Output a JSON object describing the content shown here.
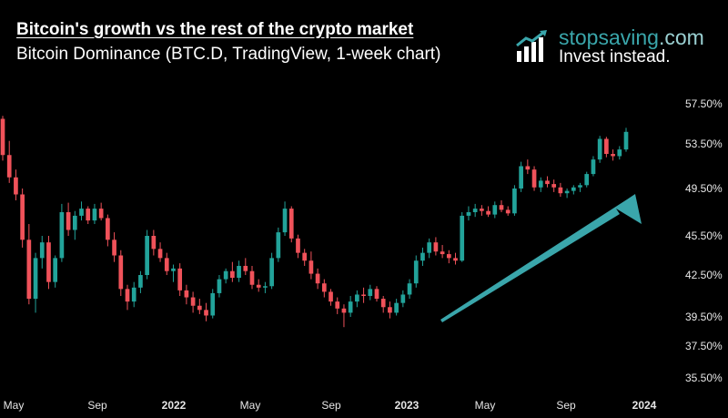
{
  "title": "Bitcoin's growth vs the rest of the crypto market",
  "subtitle": "Bitcoin Dominance (BTC.D, TradingView, 1-week chart)",
  "brand": {
    "name_main": "stopsaving",
    "name_suffix": ".com",
    "tagline": "Invest instead.",
    "logo_icon": "bar-chart-growth-icon",
    "accent_color": "#3aa6ab"
  },
  "colors": {
    "up": "#22a39a",
    "down": "#f0525a",
    "arrow": "#3aa6ab",
    "background": "#000000"
  },
  "chart_data": {
    "type": "candlestick",
    "title": "Bitcoin's growth vs the rest of the crypto market",
    "subtitle": "Bitcoin Dominance (BTC.D, TradingView, 1-week chart)",
    "y_axis": {
      "ticks": [
        {
          "label": "57.50%",
          "value": 57.5
        },
        {
          "label": "53.50%",
          "value": 53.5
        },
        {
          "label": "49.50%",
          "value": 49.5
        },
        {
          "label": "45.50%",
          "value": 45.5
        },
        {
          "label": "42.50%",
          "value": 42.5
        },
        {
          "label": "39.50%",
          "value": 39.5
        },
        {
          "label": "37.50%",
          "value": 37.5
        },
        {
          "label": "35.50%",
          "value": 35.5
        }
      ]
    },
    "x_axis": {
      "ticks": [
        {
          "label": "May",
          "bold": false
        },
        {
          "label": "Sep",
          "bold": false
        },
        {
          "label": "2022",
          "bold": true
        },
        {
          "label": "May",
          "bold": false
        },
        {
          "label": "Sep",
          "bold": false
        },
        {
          "label": "2023",
          "bold": true
        },
        {
          "label": "May",
          "bold": false
        },
        {
          "label": "Sep",
          "bold": false
        },
        {
          "label": "2024",
          "bold": true
        }
      ]
    },
    "grid": false,
    "trend_arrow": {
      "from_value": 39.8,
      "to_value": 50.3,
      "direction": "up"
    },
    "candles": [
      [
        56.0,
        56.3,
        52.0,
        52.5
      ],
      [
        52.5,
        53.8,
        50.0,
        50.5
      ],
      [
        50.5,
        51.2,
        48.5,
        49.0
      ],
      [
        49.0,
        49.5,
        44.6,
        45.2
      ],
      [
        45.2,
        46.5,
        40.4,
        40.8
      ],
      [
        40.8,
        44.2,
        39.8,
        43.8
      ],
      [
        43.8,
        45.5,
        43.0,
        45.0
      ],
      [
        45.0,
        45.5,
        41.5,
        42.0
      ],
      [
        42.0,
        44.0,
        41.6,
        43.8
      ],
      [
        43.8,
        48.2,
        43.5,
        47.5
      ],
      [
        47.5,
        48.3,
        45.5,
        46.0
      ],
      [
        46.0,
        47.6,
        45.2,
        47.2
      ],
      [
        47.2,
        48.4,
        46.8,
        47.8
      ],
      [
        47.8,
        48.0,
        46.5,
        46.8
      ],
      [
        46.8,
        48.2,
        46.5,
        47.8
      ],
      [
        47.8,
        48.3,
        46.8,
        47.0
      ],
      [
        47.0,
        47.3,
        44.7,
        45.2
      ],
      [
        45.2,
        45.8,
        43.5,
        44.0
      ],
      [
        44.0,
        44.4,
        41.0,
        41.5
      ],
      [
        41.5,
        41.8,
        40.0,
        40.6
      ],
      [
        40.6,
        42.0,
        40.2,
        41.6
      ],
      [
        41.6,
        42.8,
        41.2,
        42.5
      ],
      [
        42.5,
        46.0,
        42.2,
        45.5
      ],
      [
        45.5,
        46.0,
        44.0,
        44.5
      ],
      [
        44.5,
        45.0,
        43.5,
        43.8
      ],
      [
        43.8,
        44.2,
        42.5,
        42.8
      ],
      [
        42.8,
        43.3,
        42.0,
        43.0
      ],
      [
        43.0,
        43.4,
        41.0,
        41.4
      ],
      [
        41.4,
        41.8,
        40.4,
        40.9
      ],
      [
        40.9,
        41.3,
        39.8,
        40.3
      ],
      [
        40.3,
        40.8,
        39.7,
        40.0
      ],
      [
        40.0,
        40.5,
        39.2,
        39.6
      ],
      [
        39.6,
        41.5,
        39.4,
        41.2
      ],
      [
        41.2,
        42.5,
        40.9,
        42.2
      ],
      [
        42.2,
        43.0,
        41.9,
        42.8
      ],
      [
        42.8,
        43.5,
        42.0,
        42.3
      ],
      [
        42.3,
        43.6,
        42.0,
        43.2
      ],
      [
        43.2,
        43.8,
        42.5,
        42.8
      ],
      [
        42.8,
        43.2,
        41.5,
        41.8
      ],
      [
        41.8,
        42.2,
        41.3,
        41.6
      ],
      [
        41.6,
        42.0,
        41.2,
        41.7
      ],
      [
        41.7,
        44.2,
        41.5,
        43.8
      ],
      [
        43.8,
        46.2,
        43.5,
        45.8
      ],
      [
        45.8,
        48.4,
        45.5,
        47.8
      ],
      [
        47.8,
        48.0,
        45.0,
        45.3
      ],
      [
        45.3,
        45.6,
        43.8,
        44.2
      ],
      [
        44.2,
        44.5,
        43.2,
        43.6
      ],
      [
        43.6,
        44.3,
        42.2,
        42.6
      ],
      [
        42.6,
        43.0,
        41.5,
        41.9
      ],
      [
        41.9,
        42.2,
        40.9,
        41.3
      ],
      [
        41.3,
        41.5,
        40.3,
        40.6
      ],
      [
        40.6,
        40.9,
        39.7,
        40.1
      ],
      [
        40.1,
        40.4,
        38.8,
        39.8
      ],
      [
        39.8,
        41.0,
        39.5,
        40.6
      ],
      [
        40.6,
        41.4,
        40.2,
        41.1
      ],
      [
        41.1,
        41.6,
        40.5,
        41.0
      ],
      [
        41.0,
        41.8,
        40.7,
        41.5
      ],
      [
        41.5,
        41.7,
        40.6,
        40.8
      ],
      [
        40.8,
        41.0,
        39.8,
        40.2
      ],
      [
        40.2,
        40.6,
        39.4,
        39.8
      ],
      [
        39.8,
        40.8,
        39.6,
        40.5
      ],
      [
        40.5,
        41.4,
        40.2,
        41.1
      ],
      [
        41.1,
        42.2,
        40.8,
        41.9
      ],
      [
        41.9,
        44.0,
        41.6,
        43.6
      ],
      [
        43.6,
        44.6,
        43.2,
        44.2
      ],
      [
        44.2,
        45.3,
        43.8,
        45.0
      ],
      [
        45.0,
        45.4,
        44.0,
        44.3
      ],
      [
        44.3,
        44.8,
        43.8,
        44.1
      ],
      [
        44.1,
        44.4,
        43.4,
        43.8
      ],
      [
        43.8,
        44.2,
        43.3,
        43.6
      ],
      [
        43.6,
        47.5,
        43.5,
        47.2
      ],
      [
        47.2,
        48.0,
        46.8,
        47.5
      ],
      [
        47.5,
        48.2,
        47.1,
        47.8
      ],
      [
        47.8,
        48.1,
        47.2,
        47.6
      ],
      [
        47.6,
        48.0,
        47.1,
        47.3
      ],
      [
        47.3,
        48.4,
        47.0,
        48.1
      ],
      [
        48.1,
        48.5,
        47.5,
        47.7
      ],
      [
        47.7,
        48.0,
        47.2,
        47.4
      ],
      [
        47.4,
        49.8,
        47.2,
        49.5
      ],
      [
        49.5,
        51.9,
        49.2,
        51.5
      ],
      [
        51.5,
        52.1,
        50.8,
        51.2
      ],
      [
        51.2,
        51.5,
        49.3,
        49.6
      ],
      [
        49.6,
        50.5,
        49.2,
        50.2
      ],
      [
        50.2,
        50.6,
        49.6,
        49.9
      ],
      [
        49.9,
        50.3,
        49.2,
        49.6
      ],
      [
        49.6,
        50.0,
        48.8,
        49.1
      ],
      [
        49.1,
        49.5,
        48.7,
        49.3
      ],
      [
        49.3,
        49.8,
        49.0,
        49.6
      ],
      [
        49.6,
        50.0,
        49.2,
        49.8
      ],
      [
        49.8,
        51.0,
        49.6,
        50.8
      ],
      [
        50.8,
        52.4,
        50.6,
        52.1
      ],
      [
        52.1,
        54.3,
        51.8,
        54.0
      ],
      [
        54.0,
        54.2,
        52.3,
        52.6
      ],
      [
        52.6,
        53.0,
        52.0,
        52.4
      ],
      [
        52.4,
        53.3,
        52.1,
        53.0
      ],
      [
        53.0,
        55.1,
        52.8,
        54.7
      ]
    ]
  }
}
